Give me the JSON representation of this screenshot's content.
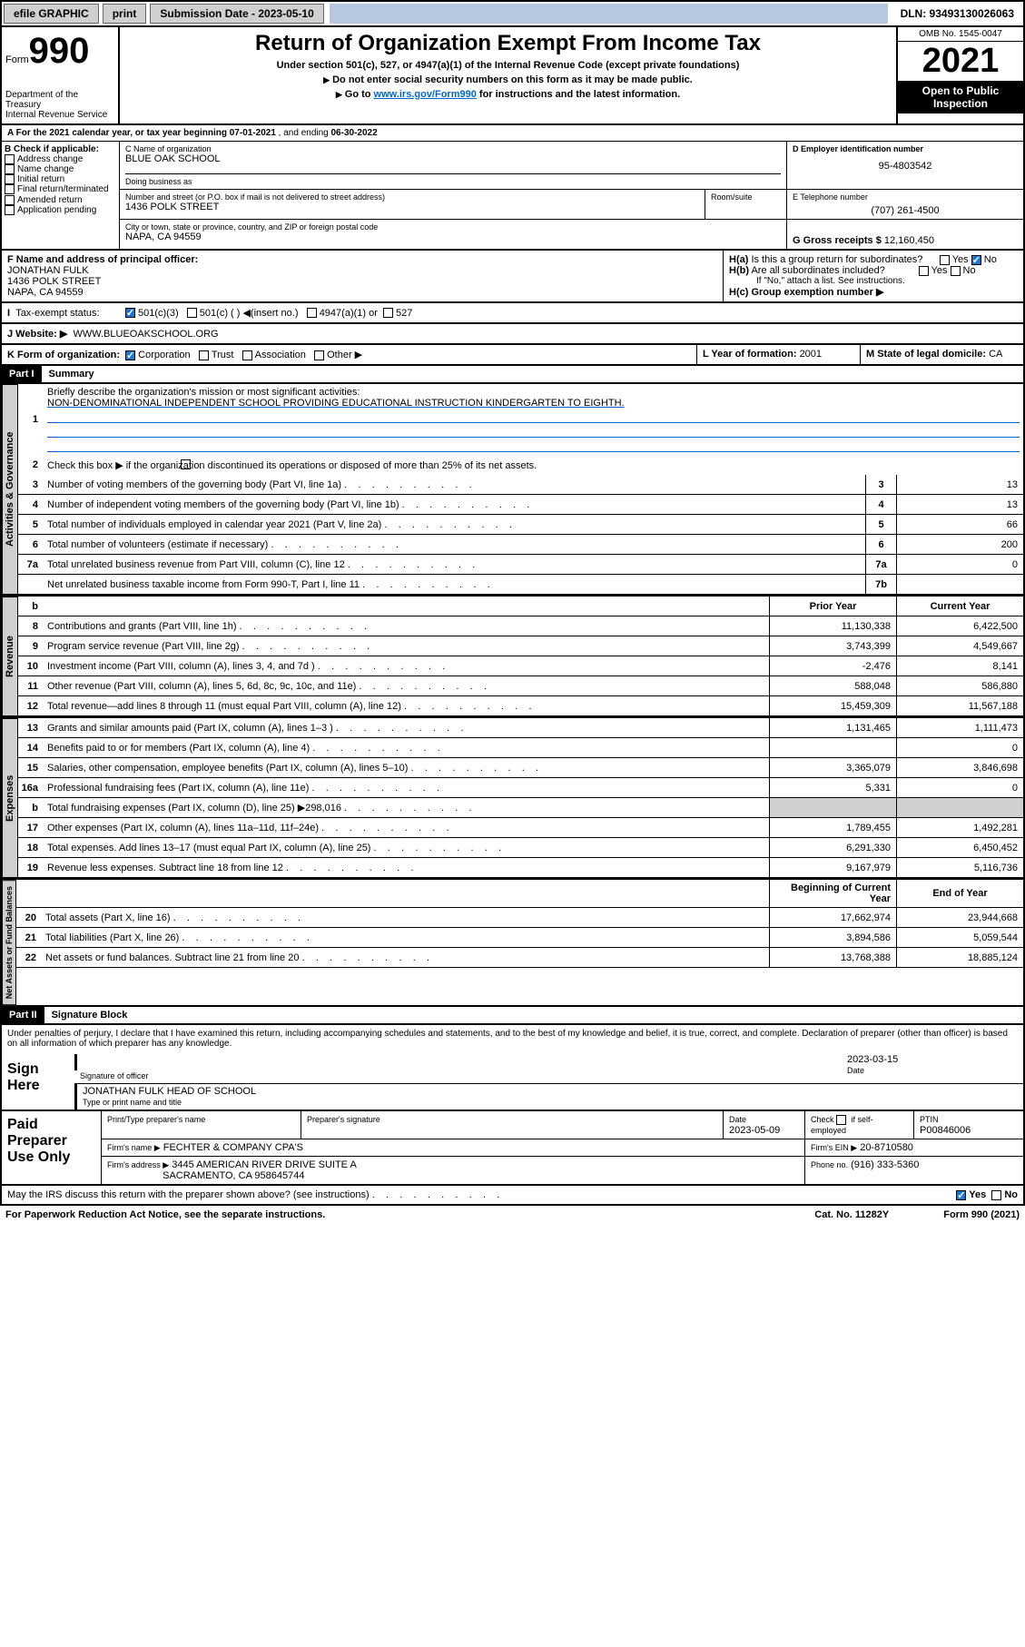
{
  "topbar": {
    "efile": "efile GRAPHIC",
    "print": "print",
    "subdate_label": "Submission Date - 2023-05-10",
    "dln_label": "DLN: 93493130026063"
  },
  "header": {
    "form_label": "Form",
    "form_num": "990",
    "dept": "Department of the Treasury",
    "irs": "Internal Revenue Service",
    "title": "Return of Organization Exempt From Income Tax",
    "sub1": "Under section 501(c), 527, or 4947(a)(1) of the Internal Revenue Code (except private foundations)",
    "sub2": "Do not enter social security numbers on this form as it may be made public.",
    "sub3_pre": "Go to ",
    "sub3_link": "www.irs.gov/Form990",
    "sub3_post": " for instructions and the latest information.",
    "omb": "OMB No. 1545-0047",
    "year": "2021",
    "inspect": "Open to Public Inspection"
  },
  "rowA": {
    "label": "A For the 2021 calendar year, or tax year beginning ",
    "begin": "07-01-2021",
    "mid": " , and ending ",
    "end": "06-30-2022"
  },
  "colB": {
    "title": "B Check if applicable:",
    "opts": [
      "Address change",
      "Name change",
      "Initial return",
      "Final return/terminated",
      "Amended return",
      "Application pending"
    ]
  },
  "colC": {
    "name_label": "C Name of organization",
    "name": "BLUE OAK SCHOOL",
    "dba_label": "Doing business as",
    "addr_label": "Number and street (or P.O. box if mail is not delivered to street address)",
    "room_label": "Room/suite",
    "addr": "1436 POLK STREET",
    "city_label": "City or town, state or province, country, and ZIP or foreign postal code",
    "city": "NAPA, CA  94559"
  },
  "colD": {
    "label": "D Employer identification number",
    "val": "95-4803542"
  },
  "colE": {
    "label": "E Telephone number",
    "val": "(707) 261-4500"
  },
  "colG": {
    "label": "G Gross receipts $ ",
    "val": "12,160,450"
  },
  "rowF": {
    "label": "F Name and address of principal officer:",
    "name": "JONATHAN FULK",
    "addr1": "1436 POLK STREET",
    "addr2": "NAPA, CA  94559"
  },
  "rowH": {
    "ha": "H(a) Is this a group return for subordinates?",
    "yes": "Yes",
    "no": "No",
    "hb": "H(b) Are all subordinates included?",
    "hb_note": "If \"No,\" attach a list. See instructions.",
    "hc": "H(c) Group exemption number ▶"
  },
  "rowI": {
    "label": "Tax-exempt status:",
    "o1": "501(c)(3)",
    "o2": "501(c) (   ) ◀(insert no.)",
    "o3": "4947(a)(1) or",
    "o4": "527"
  },
  "rowJ": {
    "label": "J   Website: ▶",
    "val": "WWW.BLUEOAKSCHOOL.ORG"
  },
  "rowK": {
    "label": "K Form of organization:",
    "o1": "Corporation",
    "o2": "Trust",
    "o3": "Association",
    "o4": "Other ▶"
  },
  "rowL": {
    "label": "L Year of formation: ",
    "val": "2001"
  },
  "rowM": {
    "label": "M State of legal domicile: ",
    "val": "CA"
  },
  "part1": {
    "hdr": "Part I",
    "title": "Summary"
  },
  "summary": {
    "l1_label": "Briefly describe the organization's mission or most significant activities:",
    "l1_val": "NON-DENOMINATIONAL INDEPENDENT SCHOOL PROVIDING EDUCATIONAL INSTRUCTION KINDERGARTEN TO EIGHTH.",
    "l2": "Check this box ▶        if the organization discontinued its operations or disposed of more than 25% of its net assets.",
    "lines_single": [
      {
        "n": "3",
        "d": "Number of voting members of the governing body (Part VI, line 1a)",
        "box": "3",
        "v": "13"
      },
      {
        "n": "4",
        "d": "Number of independent voting members of the governing body (Part VI, line 1b)",
        "box": "4",
        "v": "13"
      },
      {
        "n": "5",
        "d": "Total number of individuals employed in calendar year 2021 (Part V, line 2a)",
        "box": "5",
        "v": "66"
      },
      {
        "n": "6",
        "d": "Total number of volunteers (estimate if necessary)",
        "box": "6",
        "v": "200"
      },
      {
        "n": "7a",
        "d": "Total unrelated business revenue from Part VIII, column (C), line 12",
        "box": "7a",
        "v": "0"
      },
      {
        "n": "",
        "d": "Net unrelated business taxable income from Form 990-T, Part I, line 11",
        "box": "7b",
        "v": ""
      }
    ],
    "col_hdr_b": "b",
    "col_hdr_prior": "Prior Year",
    "col_hdr_current": "Current Year",
    "rev": [
      {
        "n": "8",
        "d": "Contributions and grants (Part VIII, line 1h)",
        "p": "11,130,338",
        "c": "6,422,500"
      },
      {
        "n": "9",
        "d": "Program service revenue (Part VIII, line 2g)",
        "p": "3,743,399",
        "c": "4,549,667"
      },
      {
        "n": "10",
        "d": "Investment income (Part VIII, column (A), lines 3, 4, and 7d )",
        "p": "-2,476",
        "c": "8,141"
      },
      {
        "n": "11",
        "d": "Other revenue (Part VIII, column (A), lines 5, 6d, 8c, 9c, 10c, and 11e)",
        "p": "588,048",
        "c": "586,880"
      },
      {
        "n": "12",
        "d": "Total revenue—add lines 8 through 11 (must equal Part VIII, column (A), line 12)",
        "p": "15,459,309",
        "c": "11,567,188"
      }
    ],
    "exp": [
      {
        "n": "13",
        "d": "Grants and similar amounts paid (Part IX, column (A), lines 1–3 )",
        "p": "1,131,465",
        "c": "1,111,473"
      },
      {
        "n": "14",
        "d": "Benefits paid to or for members (Part IX, column (A), line 4)",
        "p": "",
        "c": "0"
      },
      {
        "n": "15",
        "d": "Salaries, other compensation, employee benefits (Part IX, column (A), lines 5–10)",
        "p": "3,365,079",
        "c": "3,846,698"
      },
      {
        "n": "16a",
        "d": "Professional fundraising fees (Part IX, column (A), line 11e)",
        "p": "5,331",
        "c": "0"
      },
      {
        "n": "b",
        "d": "Total fundraising expenses (Part IX, column (D), line 25) ▶298,016",
        "p": "SHADE",
        "c": "SHADE"
      },
      {
        "n": "17",
        "d": "Other expenses (Part IX, column (A), lines 11a–11d, 11f–24e)",
        "p": "1,789,455",
        "c": "1,492,281"
      },
      {
        "n": "18",
        "d": "Total expenses. Add lines 13–17 (must equal Part IX, column (A), line 25)",
        "p": "6,291,330",
        "c": "6,450,452"
      },
      {
        "n": "19",
        "d": "Revenue less expenses. Subtract line 18 from line 12",
        "p": "9,167,979",
        "c": "5,116,736"
      }
    ],
    "col_hdr_begin": "Beginning of Current Year",
    "col_hdr_end": "End of Year",
    "net": [
      {
        "n": "20",
        "d": "Total assets (Part X, line 16)",
        "p": "17,662,974",
        "c": "23,944,668"
      },
      {
        "n": "21",
        "d": "Total liabilities (Part X, line 26)",
        "p": "3,894,586",
        "c": "5,059,544"
      },
      {
        "n": "22",
        "d": "Net assets or fund balances. Subtract line 21 from line 20",
        "p": "13,768,388",
        "c": "18,885,124"
      }
    ]
  },
  "tabs": {
    "gov": "Activities & Governance",
    "rev": "Revenue",
    "exp": "Expenses",
    "net": "Net Assets or Fund Balances"
  },
  "part2": {
    "hdr": "Part II",
    "title": "Signature Block"
  },
  "sig": {
    "decl": "Under penalties of perjury, I declare that I have examined this return, including accompanying schedules and statements, and to the best of my knowledge and belief, it is true, correct, and complete. Declaration of preparer (other than officer) is based on all information of which preparer has any knowledge.",
    "sign_here": "Sign Here",
    "sig_officer": "Signature of officer",
    "date": "Date",
    "date_val": "2023-03-15",
    "name": "JONATHAN FULK HEAD OF SCHOOL",
    "name_label": "Type or print name and title"
  },
  "paid": {
    "title": "Paid Preparer Use Only",
    "h1": "Print/Type preparer's name",
    "h2": "Preparer's signature",
    "h3": "Date",
    "h3v": "2023-05-09",
    "h4": "Check        if self-employed",
    "h5": "PTIN",
    "h5v": "P00846006",
    "firm_name_l": "Firm's name     ▶",
    "firm_name": "FECHTER & COMPANY CPA'S",
    "firm_ein_l": "Firm's EIN ▶",
    "firm_ein": "20-8710580",
    "firm_addr_l": "Firm's address ▶",
    "firm_addr1": "3445 AMERICAN RIVER DRIVE SUITE A",
    "firm_addr2": "SACRAMENTO, CA  958645744",
    "phone_l": "Phone no.",
    "phone": "(916) 333-5360"
  },
  "footer": {
    "discuss": "May the IRS discuss this return with the preparer shown above? (see instructions)",
    "yes": "Yes",
    "no": "No",
    "pra": "For Paperwork Reduction Act Notice, see the separate instructions.",
    "cat": "Cat. No. 11282Y",
    "form": "Form 990 (2021)"
  }
}
